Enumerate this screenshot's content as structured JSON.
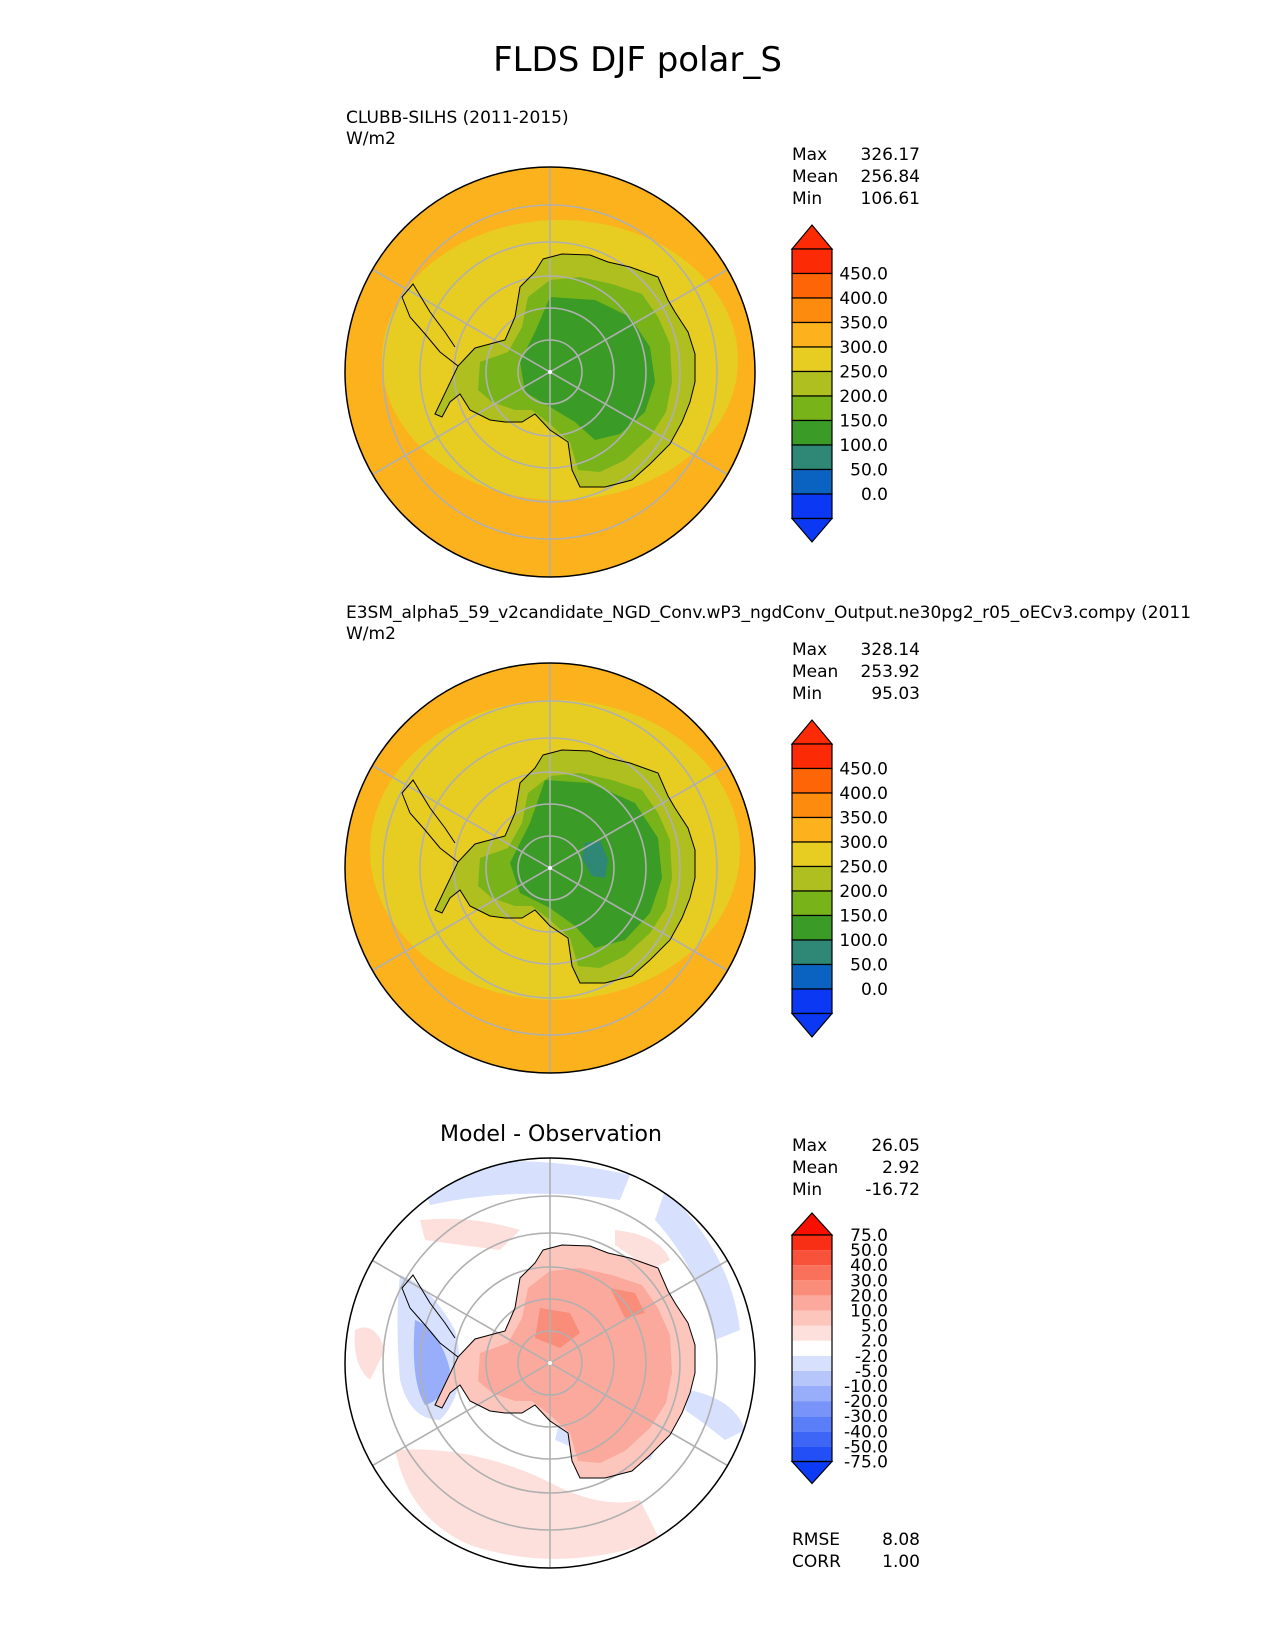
{
  "figure": {
    "title": "FLDS DJF polar_S"
  },
  "panels": [
    {
      "title_lines": [
        "CLUBB-SILHS (2011-2015)",
        "W/m2"
      ],
      "stats": [
        {
          "label": "Max",
          "value": "326.17"
        },
        {
          "label": "Mean",
          "value": "256.84"
        },
        {
          "label": "Min",
          "value": "106.61"
        }
      ]
    },
    {
      "title_lines": [
        "E3SM_alpha5_59_v2candidate_NGD_Conv.wP3_ngdConv_Output.ne30pg2_r05_oECv3.compy (2011",
        "W/m2"
      ],
      "stats": [
        {
          "label": "Max",
          "value": "328.14"
        },
        {
          "label": "Mean",
          "value": "253.92"
        },
        {
          "label": "Min",
          "value": "95.03"
        }
      ]
    },
    {
      "center_title": "Model - Observation",
      "stats": [
        {
          "label": "Max",
          "value": "26.05"
        },
        {
          "label": "Mean",
          "value": "2.92"
        },
        {
          "label": "Min",
          "value": "-16.72"
        }
      ],
      "metrics": [
        {
          "label": "RMSE",
          "value": "8.08"
        },
        {
          "label": "CORR",
          "value": "1.00"
        }
      ]
    }
  ],
  "chart_data": [
    {
      "type": "heatmap",
      "projection": "south polar stereographic",
      "title": "CLUBB-SILHS (2011-2015)",
      "units": "W/m2",
      "colorbar_levels": [
        0,
        50,
        100,
        150,
        200,
        250,
        300,
        350,
        400,
        450
      ],
      "colorbar_labels": [
        "0.0",
        "50.0",
        "100.0",
        "150.0",
        "200.0",
        "250.0",
        "300.0",
        "350.0",
        "400.0",
        "450.0"
      ],
      "colorbar_colors": [
        "#0b38f2",
        "#0a63c0",
        "#2e8875",
        "#3a9b27",
        "#78b31a",
        "#afbf1f",
        "#e7cc22",
        "#fcb21d",
        "#fd8c0e",
        "#fd6507",
        "#fd2a06"
      ],
      "field_bands": [
        {
          "region": "continent interior",
          "range": "100-150"
        },
        {
          "region": "continent edge",
          "range": "150-250"
        },
        {
          "region": "ocean near continent",
          "range": "250-300"
        },
        {
          "region": "outer ocean",
          "range": "300-350"
        }
      ],
      "max": 326.17,
      "mean": 256.84,
      "min": 106.61
    },
    {
      "type": "heatmap",
      "projection": "south polar stereographic",
      "title": "E3SM_alpha5_59_v2candidate_NGD_Conv.wP3_ngdConv_Output.ne30pg2_r05_oECv3.compy (2011",
      "units": "W/m2",
      "colorbar_levels": [
        0,
        50,
        100,
        150,
        200,
        250,
        300,
        350,
        400,
        450
      ],
      "colorbar_labels": [
        "0.0",
        "50.0",
        "100.0",
        "150.0",
        "200.0",
        "250.0",
        "300.0",
        "350.0",
        "400.0",
        "450.0"
      ],
      "colorbar_colors": [
        "#0b38f2",
        "#0a63c0",
        "#2e8875",
        "#3a9b27",
        "#78b31a",
        "#afbf1f",
        "#e7cc22",
        "#fcb21d",
        "#fd8c0e",
        "#fd6507",
        "#fd2a06"
      ],
      "field_bands": [
        {
          "region": "continent interior",
          "range": "50-100 (small patch) / 100-150"
        },
        {
          "region": "continent edge",
          "range": "150-250"
        },
        {
          "region": "ocean near continent",
          "range": "250-300"
        },
        {
          "region": "outer ocean",
          "range": "300-350"
        }
      ],
      "max": 328.14,
      "mean": 253.92,
      "min": 95.03
    },
    {
      "type": "heatmap",
      "projection": "south polar stereographic",
      "title": "Model - Observation",
      "colorbar_levels": [
        -75,
        -50,
        -40,
        -30,
        -20,
        -10,
        -5,
        -2,
        2,
        5,
        10,
        20,
        30,
        40,
        50,
        75
      ],
      "colorbar_labels": [
        "-75.0",
        "-50.0",
        "-40.0",
        "-30.0",
        "-20.0",
        "-10.0",
        "-5.0",
        "-2.0",
        "2.0",
        "5.0",
        "10.0",
        "20.0",
        "30.0",
        "40.0",
        "50.0",
        "75.0"
      ],
      "colorbar_colors": [
        "#0b3bf5",
        "#2250f6",
        "#3d66f6",
        "#5a7ef7",
        "#7894f8",
        "#98aefa",
        "#b6c6fb",
        "#d7e0fd",
        "#ffffff",
        "#fde0dc",
        "#fcc6bd",
        "#fba99c",
        "#fa8c7a",
        "#f9705b",
        "#f8533a",
        "#f82f14",
        "#f70f00"
      ],
      "max": 26.05,
      "mean": 2.92,
      "min": -16.72,
      "rmse": 8.08,
      "corr": 1.0
    }
  ]
}
